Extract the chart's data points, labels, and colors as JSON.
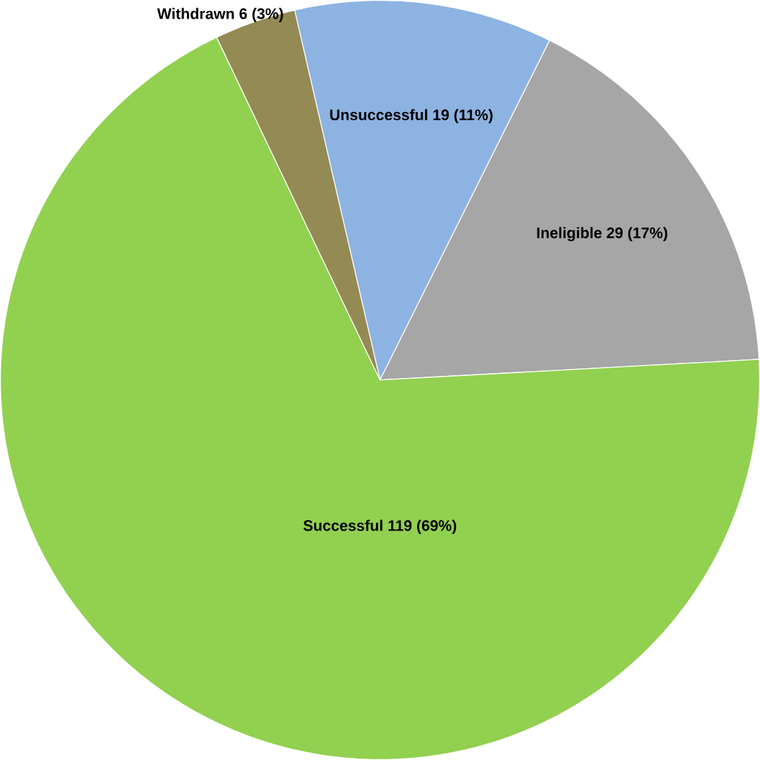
{
  "chart_data": {
    "type": "pie",
    "categories": [
      "Unsuccessful",
      "Ineligible",
      "Successful",
      "Withdrawn"
    ],
    "values": [
      19,
      29,
      119,
      6
    ],
    "colors": [
      "#8db3e2",
      "#a6a6a6",
      "#92d050",
      "#948a54"
    ],
    "value_labels": [
      "19 (11%)",
      "29 (17%)",
      "119 (69%)",
      "6 (3%)"
    ]
  }
}
